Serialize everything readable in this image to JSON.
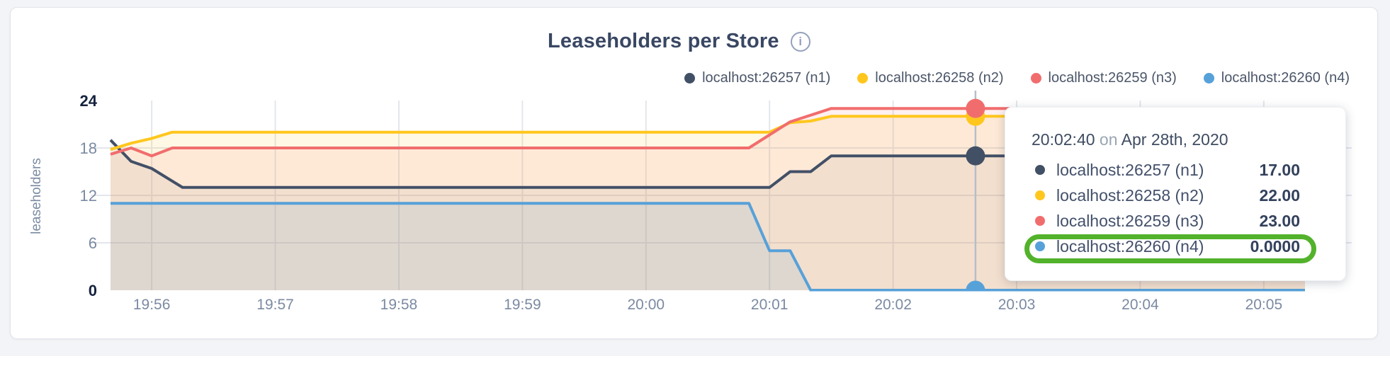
{
  "card": {
    "title": "Leaseholders per Store",
    "info_icon_glyph": "i"
  },
  "chart_data": {
    "type": "area",
    "title": "Leaseholders per Store",
    "ylabel": "leaseholders",
    "ylim": [
      0,
      24
    ],
    "y_ticks": [
      {
        "v": 0,
        "label": "0",
        "bold": true
      },
      {
        "v": 6,
        "label": "6",
        "bold": false
      },
      {
        "v": 12,
        "label": "12",
        "bold": false
      },
      {
        "v": 18,
        "label": "18",
        "bold": false
      },
      {
        "v": 24,
        "label": "24",
        "bold": true
      }
    ],
    "y_gridlines": [
      6,
      12,
      18
    ],
    "x_domain_s": [
      0,
      580
    ],
    "x_start_time": "19:55:40",
    "x_ticks": [
      {
        "label": "19:56",
        "t": 20
      },
      {
        "label": "19:57",
        "t": 80
      },
      {
        "label": "19:58",
        "t": 140
      },
      {
        "label": "19:59",
        "t": 200
      },
      {
        "label": "20:00",
        "t": 260
      },
      {
        "label": "20:01",
        "t": 320
      },
      {
        "label": "20:02",
        "t": 380
      },
      {
        "label": "20:03",
        "t": 440
      },
      {
        "label": "20:04",
        "t": 500
      },
      {
        "label": "20:05",
        "t": 560
      }
    ],
    "grid": true,
    "legend_position": "top-right",
    "series": [
      {
        "name": "localhost:26257 (n1)",
        "color": "#425066",
        "fill_opacity": 0.07,
        "points": [
          [
            0,
            19
          ],
          [
            10,
            16.3
          ],
          [
            20,
            15.4
          ],
          [
            35,
            13
          ],
          [
            320,
            13
          ],
          [
            330,
            15
          ],
          [
            340,
            15
          ],
          [
            350,
            17
          ],
          [
            580,
            17
          ]
        ]
      },
      {
        "name": "localhost:26258 (n2)",
        "color": "#FFC71E",
        "fill_opacity": 0.12,
        "points": [
          [
            0,
            17.8
          ],
          [
            10,
            18.6
          ],
          [
            20,
            19.2
          ],
          [
            30,
            20
          ],
          [
            320,
            20
          ],
          [
            330,
            21.2
          ],
          [
            340,
            21.4
          ],
          [
            350,
            22
          ],
          [
            580,
            22
          ]
        ]
      },
      {
        "name": "localhost:26259 (n3)",
        "color": "#F16D6D",
        "fill_opacity": 0.1,
        "points": [
          [
            0,
            17.2
          ],
          [
            10,
            18
          ],
          [
            20,
            17
          ],
          [
            30,
            18
          ],
          [
            310,
            18
          ],
          [
            330,
            21.3
          ],
          [
            350,
            23
          ],
          [
            580,
            23
          ]
        ]
      },
      {
        "name": "localhost:26260 (n4)",
        "color": "#57A1D9",
        "fill_opacity": 0.13,
        "points": [
          [
            0,
            11
          ],
          [
            310,
            11
          ],
          [
            320,
            5
          ],
          [
            330,
            5
          ],
          [
            340,
            0
          ],
          [
            580,
            0
          ]
        ]
      }
    ],
    "hover": {
      "t": 420,
      "time": "20:02:40",
      "connector": "on",
      "date": "Apr 28th, 2020",
      "values": [
        {
          "name": "localhost:26257 (n1)",
          "value": 17,
          "value_text": "17.00"
        },
        {
          "name": "localhost:26258 (n2)",
          "value": 22,
          "value_text": "22.00"
        },
        {
          "name": "localhost:26259 (n3)",
          "value": 23,
          "value_text": "23.00"
        },
        {
          "name": "localhost:26260 (n4)",
          "value": 0,
          "value_text": "0.0000",
          "annotated": true
        }
      ]
    },
    "annotation": {
      "shape": "rounded-ellipse",
      "color": "#53B22B",
      "target": "localhost:26260 (n4)"
    }
  }
}
